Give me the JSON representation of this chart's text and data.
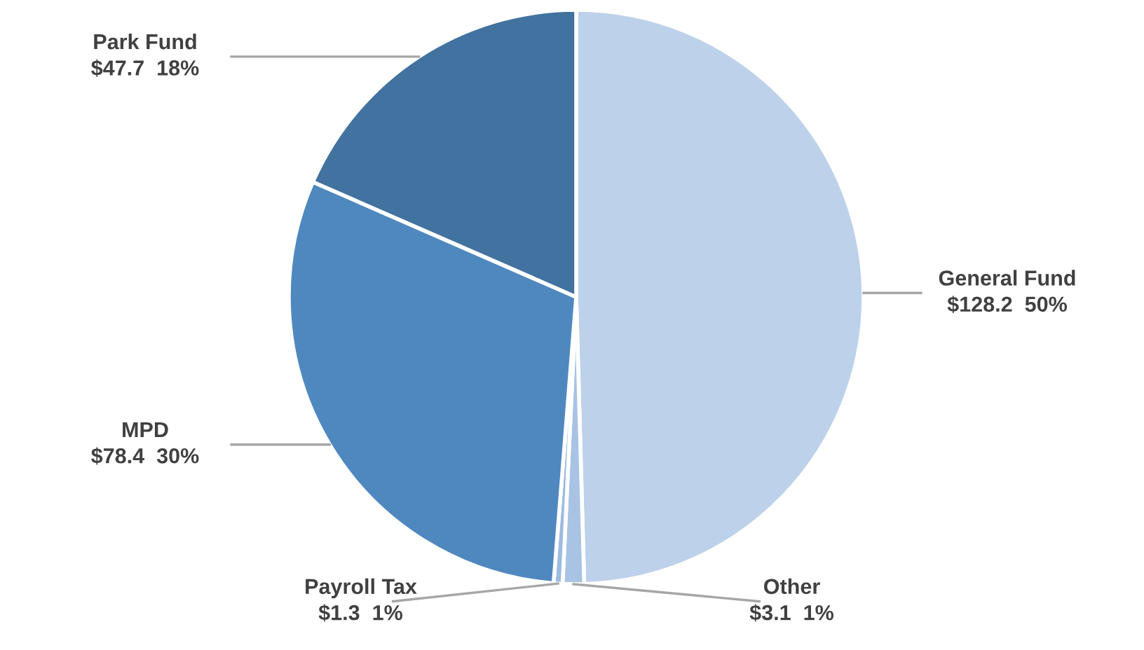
{
  "chart_data": {
    "type": "pie",
    "categories": [
      "General Fund",
      "Other",
      "Payroll Tax",
      "MPD",
      "Park Fund"
    ],
    "values": [
      128.2,
      3.1,
      1.3,
      78.4,
      47.7
    ],
    "value_labels": [
      "$128.2  50%",
      "$3.1  1%",
      "$1.3  1%",
      "$78.4  30%",
      "$47.7  18%"
    ],
    "colors": [
      "#bdd1ea",
      "#a8c3e4",
      "#9dbbe0",
      "#4f88bf",
      "#42729f"
    ],
    "legend": false
  }
}
